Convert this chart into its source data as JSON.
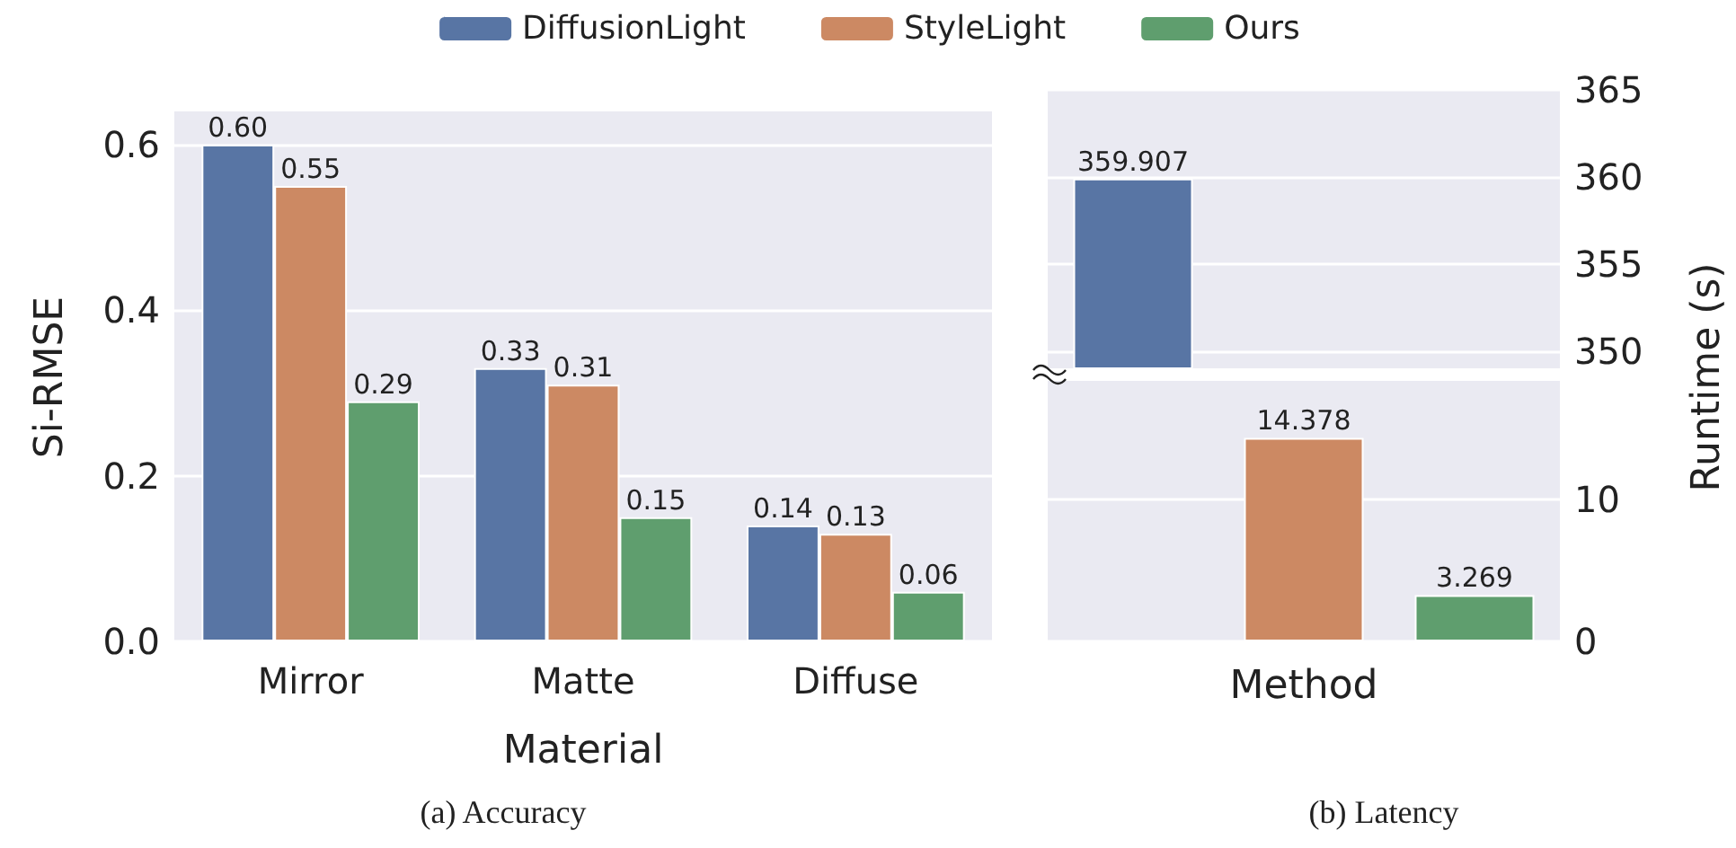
{
  "chart_data": [
    {
      "type": "bar",
      "categories": [
        "Mirror",
        "Matte",
        "Diffuse"
      ],
      "xlabel": "Material",
      "ylabel": "Si-RMSE",
      "ylim": [
        0,
        0.64
      ],
      "yticks": [
        {
          "value": 0,
          "label": "0.0"
        },
        {
          "value": 0.2,
          "label": "0.2"
        },
        {
          "value": 0.4,
          "label": "0.4"
        },
        {
          "value": 0.6,
          "label": "0.6"
        }
      ],
      "grid": "y",
      "legend": "top",
      "annotations": [
        "(a) Accuracy"
      ],
      "series": [
        {
          "name": "DiffusionLight",
          "color": "#5875a4",
          "values": [
            0.6,
            0.33,
            0.14
          ],
          "value_labels": [
            "0.60",
            "0.33",
            "0.14"
          ]
        },
        {
          "name": "StyleLight",
          "color": "#cc8963",
          "values": [
            0.55,
            0.31,
            0.13
          ],
          "value_labels": [
            "0.55",
            "0.31",
            "0.13"
          ]
        },
        {
          "name": "Ours",
          "color": "#5f9e6e",
          "values": [
            0.29,
            0.15,
            0.06
          ],
          "value_labels": [
            "0.29",
            "0.15",
            "0.06"
          ]
        }
      ]
    },
    {
      "type": "bar",
      "categories": [
        null,
        null,
        null
      ],
      "values": [
        359.907,
        null,
        null
      ],
      "colors": [
        "#5875a4",
        "#cc8963",
        "#5f9e6e"
      ],
      "value_labels": [
        "359.907",
        null,
        null
      ],
      "ylim": [
        349,
        365
      ],
      "yticks": [
        350,
        355,
        360,
        365
      ],
      "grid": "y",
      "tick_labels": "y"
    },
    {
      "type": "bar",
      "categories": [
        null,
        null,
        null
      ],
      "values": [
        null,
        14.378,
        3.269
      ],
      "colors": [
        "#5875a4",
        "#cc8963",
        "#5f9e6e"
      ],
      "value_labels": [
        null,
        "14.378",
        "3.269"
      ],
      "ylim": [
        0,
        18.4
      ],
      "yticks": [
        0,
        10
      ],
      "xlabel": "Method",
      "ylabel": "Runtime (s)",
      "grid": "y",
      "tick_labels": "y",
      "annotations": [
        "(b) Latency"
      ]
    }
  ]
}
